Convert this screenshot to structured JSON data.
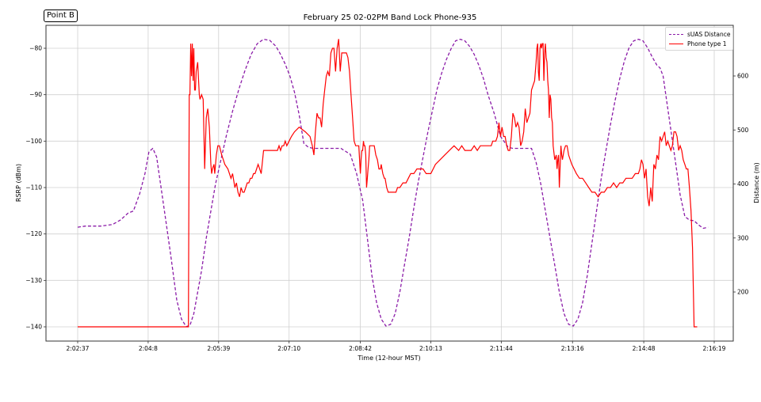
{
  "badge": "Point B",
  "title": "February 25 02-02PM Band Lock Phone-935",
  "colors": {
    "distance": "#8b1ca8",
    "phone": "#ff0000",
    "grid": "#d0d0d0",
    "axis": "#333333"
  },
  "legend": {
    "distance_label": "sUAS Distance",
    "phone_label": "Phone  type  1"
  },
  "chart_data": {
    "type": "line",
    "title": "February 25 02-02PM Band Lock Phone-935",
    "xlabel": "Time (12-hour MST)",
    "ylabel": "RSRP (dBm)",
    "y2label": "Distance (m)",
    "x_ticks": [
      "2:02:37",
      "2:04:8",
      "2:05:39",
      "2:07:10",
      "2:08:42",
      "2:10:13",
      "2:11:44",
      "2:13:16",
      "2:14:48",
      "2:16:19"
    ],
    "x_tick_seconds": [
      0,
      91,
      182,
      273,
      365,
      456,
      547,
      639,
      731,
      822
    ],
    "y_ticks": [
      -80,
      -90,
      -100,
      -110,
      -120,
      -130,
      -140
    ],
    "y_range": [
      -143,
      -75
    ],
    "y2_ticks": [
      200,
      300,
      400,
      500,
      600
    ],
    "y2_range": [
      109,
      703
    ],
    "grid": true,
    "legend_position": "upper right",
    "series": [
      {
        "name": "sUAS Distance",
        "axis": "right",
        "style": "dashed",
        "x_seconds": [
          0,
          10,
          30,
          45,
          55,
          65,
          72,
          80,
          87,
          92,
          97,
          102,
          108,
          114,
          120,
          128,
          134,
          140,
          145,
          150,
          155,
          160,
          166,
          172,
          178,
          185,
          192,
          200,
          208,
          216,
          224,
          232,
          240,
          248,
          256,
          262,
          268,
          274,
          280,
          286,
          292,
          298,
          304,
          310,
          316,
          322,
          330,
          340,
          352,
          360,
          368,
          374,
          380,
          386,
          392,
          398,
          404,
          410,
          416,
          422,
          428,
          434,
          440,
          446,
          452,
          458,
          464,
          470,
          476,
          482,
          488,
          494,
          500,
          506,
          512,
          518,
          524,
          530,
          538,
          546,
          556,
          562,
          568,
          574,
          580,
          586,
          592,
          598,
          604,
          610,
          616,
          622,
          628,
          634,
          640,
          646,
          652,
          658,
          664,
          670,
          676,
          682,
          688,
          694,
          700,
          706,
          712,
          718,
          724,
          730,
          736,
          742,
          748,
          752,
          756,
          760,
          766,
          772,
          778,
          784,
          790,
          796,
          802,
          808,
          814
        ],
        "values": [
          320,
          322,
          322,
          325,
          333,
          346,
          350,
          382,
          420,
          460,
          466,
          450,
          390,
          330,
          270,
          185,
          150,
          136,
          138,
          160,
          200,
          240,
          300,
          350,
          400,
          445,
          490,
          535,
          575,
          610,
          640,
          660,
          668,
          666,
          655,
          640,
          622,
          600,
          570,
          528,
          475,
          468,
          466,
          466,
          466,
          466,
          466,
          466,
          455,
          420,
          370,
          300,
          230,
          180,
          150,
          137,
          140,
          160,
          200,
          250,
          300,
          355,
          405,
          450,
          495,
          535,
          575,
          605,
          630,
          650,
          665,
          668,
          665,
          655,
          640,
          620,
          595,
          565,
          530,
          488,
          468,
          466,
          466,
          466,
          466,
          466,
          440,
          400,
          350,
          300,
          250,
          200,
          160,
          140,
          137,
          150,
          180,
          230,
          290,
          350,
          410,
          460,
          510,
          555,
          595,
          628,
          652,
          665,
          668,
          665,
          652,
          635,
          620,
          615,
          600,
          560,
          500,
          440,
          380,
          340,
          333,
          332,
          324,
          318,
          320
        ]
      },
      {
        "name": "Phone  type  1",
        "axis": "left",
        "style": "solid",
        "x_seconds": [
          0,
          143,
          144,
          145,
          146,
          147,
          148,
          149,
          150,
          151,
          152,
          153,
          155,
          157,
          158,
          160,
          162,
          164,
          166,
          167,
          168,
          170,
          172,
          173,
          174,
          176,
          177,
          179,
          181,
          183,
          186,
          188,
          190,
          194,
          198,
          200,
          203,
          205,
          207,
          209,
          211,
          213,
          215,
          217,
          219,
          221,
          223,
          225,
          227,
          229,
          231,
          233,
          235,
          237,
          240,
          243,
          246,
          250,
          254,
          258,
          260,
          262,
          264,
          266,
          268,
          270,
          273,
          276,
          280,
          286,
          294,
          300,
          303,
          305,
          307,
          309,
          311,
          313,
          315,
          317,
          319,
          321,
          323,
          325,
          327,
          329,
          331,
          333,
          335,
          337,
          339,
          341,
          343,
          345,
          347,
          349,
          351,
          353,
          355,
          357,
          359,
          361,
          363,
          365,
          366,
          367,
          368,
          369,
          370,
          371,
          372,
          373,
          374,
          375,
          376,
          377,
          378,
          379,
          380,
          381,
          383,
          385,
          387,
          389,
          391,
          392,
          393,
          394,
          396,
          397,
          399,
          401,
          403,
          405,
          407,
          409,
          411,
          413,
          416,
          420,
          424,
          427,
          430,
          434,
          438,
          442,
          446,
          450,
          456,
          462,
          468,
          474,
          480,
          486,
          492,
          496,
          500,
          504,
          508,
          512,
          516,
          520,
          524,
          526,
          528,
          530,
          532,
          534,
          536,
          538,
          540,
          542,
          544,
          546,
          548,
          550,
          552,
          554,
          556,
          558,
          560,
          562,
          564,
          566,
          568,
          570,
          572,
          574,
          576,
          578,
          580,
          582,
          584,
          586,
          588,
          590,
          592,
          593,
          594,
          595,
          596,
          597,
          598,
          599,
          600,
          601,
          602,
          603,
          604,
          605,
          606,
          607,
          608,
          609,
          610,
          611,
          612,
          613,
          614,
          616,
          618,
          619,
          620,
          621,
          622,
          624,
          625,
          626,
          628,
          630,
          632,
          634,
          636,
          638,
          641,
          644,
          648,
          652,
          656,
          660,
          664,
          668,
          672,
          676,
          680,
          684,
          688,
          692,
          696,
          700,
          704,
          708,
          712,
          716,
          720,
          724,
          726,
          728,
          730,
          732,
          734,
          736,
          738,
          740,
          742,
          744,
          746,
          748,
          750,
          752,
          754,
          756,
          758,
          760,
          762,
          764,
          766,
          768,
          770,
          772,
          774,
          776,
          778,
          780,
          782,
          784,
          786,
          788,
          790,
          792,
          794,
          796,
          798,
          800,
          802,
          804,
          806,
          808,
          810,
          812
        ],
        "values": [
          -140,
          -140,
          -90,
          -90,
          -79,
          -86,
          -79,
          -87,
          -80,
          -89,
          -89,
          -85,
          -83,
          -90,
          -91,
          -90,
          -91,
          -106,
          -95,
          -94,
          -93,
          -97,
          -105,
          -107,
          -106,
          -105,
          -107,
          -103,
          -101,
          -101,
          -103,
          -104,
          -105,
          -106,
          -108,
          -107,
          -110,
          -109,
          -111,
          -112,
          -110,
          -111,
          -111,
          -110,
          -109,
          -109,
          -108,
          -108,
          -107,
          -107,
          -106,
          -105,
          -106,
          -107,
          -102,
          -102,
          -102,
          -102,
          -102,
          -102,
          -101,
          -102,
          -101,
          -101,
          -100,
          -101,
          -100,
          -99,
          -98,
          -97,
          -98,
          -99,
          -101,
          -103,
          -98,
          -94,
          -95,
          -95,
          -97,
          -92,
          -89,
          -86,
          -85,
          -86,
          -81,
          -80,
          -80,
          -85,
          -80,
          -78,
          -85,
          -81,
          -81,
          -81,
          -81,
          -82,
          -85,
          -90,
          -95,
          -100,
          -101,
          -101,
          -101,
          -107,
          -104,
          -102,
          -102,
          -100,
          -101,
          -101,
          -103,
          -110,
          -108,
          -106,
          -104,
          -101,
          -101,
          -101,
          -101,
          -101,
          -101,
          -103,
          -104,
          -106,
          -106,
          -105,
          -106,
          -107,
          -108,
          -108,
          -110,
          -111,
          -111,
          -111,
          -111,
          -111,
          -111,
          -110,
          -110,
          -109,
          -109,
          -108,
          -107,
          -107,
          -106,
          -106,
          -106,
          -107,
          -107,
          -105,
          -104,
          -103,
          -102,
          -101,
          -102,
          -101,
          -102,
          -102,
          -102,
          -101,
          -102,
          -101,
          -101,
          -101,
          -101,
          -101,
          -101,
          -101,
          -100,
          -100,
          -100,
          -99,
          -96,
          -99,
          -97,
          -99,
          -99,
          -101,
          -102,
          -102,
          -99,
          -94,
          -95,
          -97,
          -96,
          -97,
          -101,
          -100,
          -98,
          -93,
          -96,
          -95,
          -94,
          -89,
          -88,
          -87,
          -83,
          -80,
          -79,
          -85,
          -87,
          -80,
          -79,
          -80,
          -79,
          -79,
          -87,
          -81,
          -79,
          -82,
          -83,
          -87,
          -89,
          -95,
          -90,
          -91,
          -95,
          -96,
          -101,
          -104,
          -103,
          -106,
          -104,
          -103,
          -110,
          -101,
          -103,
          -104,
          -102,
          -101,
          -101,
          -103,
          -104,
          -105,
          -106,
          -107,
          -108,
          -108,
          -109,
          -110,
          -111,
          -111,
          -112,
          -111,
          -111,
          -110,
          -110,
          -109,
          -110,
          -109,
          -109,
          -108,
          -108,
          -108,
          -107,
          -107,
          -106,
          -104,
          -105,
          -108,
          -106,
          -112,
          -114,
          -110,
          -113,
          -105,
          -106,
          -103,
          -104,
          -99,
          -100,
          -99,
          -98,
          -101,
          -100,
          -101,
          -102,
          -101,
          -98,
          -98,
          -99,
          -102,
          -101,
          -102,
          -104,
          -105,
          -106,
          -106,
          -110,
          -115,
          -123,
          -140,
          -140,
          -140
        ]
      }
    ]
  }
}
